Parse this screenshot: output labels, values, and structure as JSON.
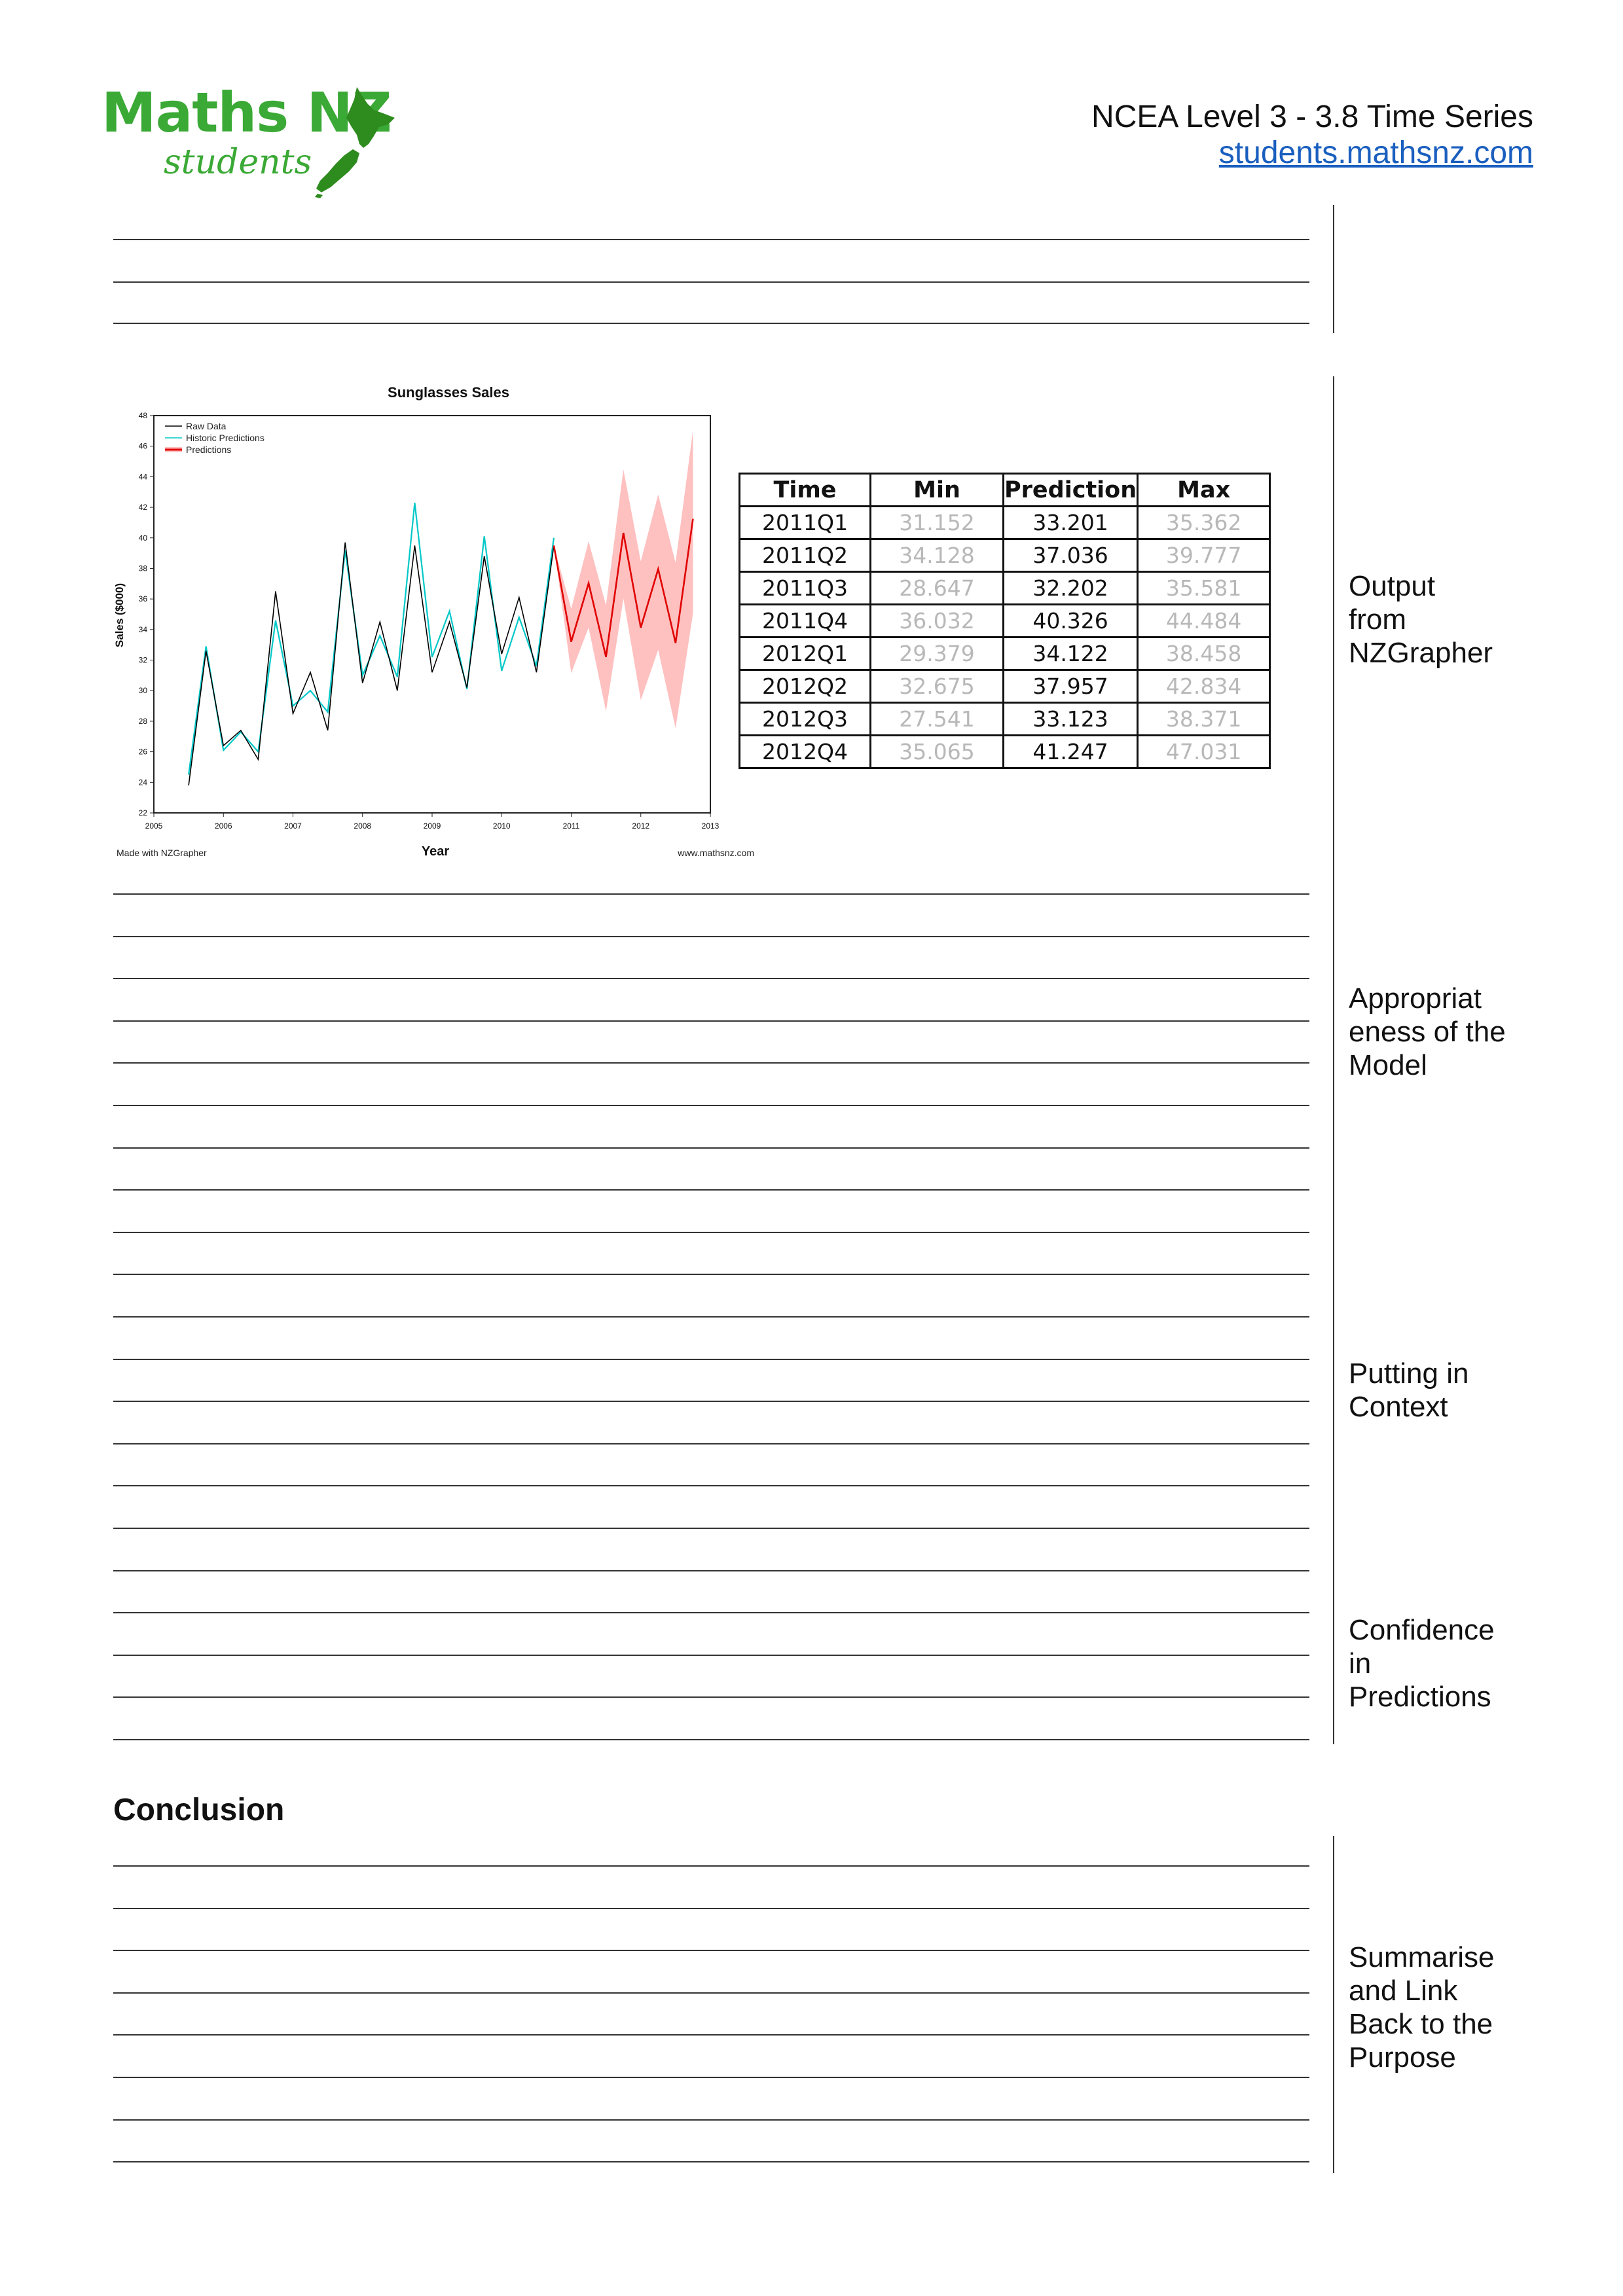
{
  "header": {
    "logo_main": "Maths NZ",
    "logo_sub": "students",
    "title": "NCEA Level 3 - 3.8 Time Series",
    "link": "students.mathsnz.com"
  },
  "side_notes": {
    "output": "Output\nfrom\nNZGrapher",
    "appropriateness": "Appropriat\neness of the\nModel",
    "context": "Putting in\nContext",
    "confidence": "Confidence\nin\nPredictions",
    "summarise": "Summarise\nand Link\nBack to the\nPurpose"
  },
  "conclusion_heading": "Conclusion",
  "table": {
    "headers": [
      "Time",
      "Min",
      "Prediction",
      "Max"
    ],
    "rows": [
      [
        "2011Q1",
        "31.152",
        "33.201",
        "35.362"
      ],
      [
        "2011Q2",
        "34.128",
        "37.036",
        "39.777"
      ],
      [
        "2011Q3",
        "28.647",
        "32.202",
        "35.581"
      ],
      [
        "2011Q4",
        "36.032",
        "40.326",
        "44.484"
      ],
      [
        "2012Q1",
        "29.379",
        "34.122",
        "38.458"
      ],
      [
        "2012Q2",
        "32.675",
        "37.957",
        "42.834"
      ],
      [
        "2012Q3",
        "27.541",
        "33.123",
        "38.371"
      ],
      [
        "2012Q4",
        "35.065",
        "41.247",
        "47.031"
      ]
    ]
  },
  "chart_data": {
    "type": "line",
    "title": "Sunglasses Sales",
    "xlabel": "Year",
    "ylabel": "Sales ($000)",
    "xlim": [
      2005,
      2013
    ],
    "ylim": [
      22,
      48
    ],
    "xticks": [
      "2005",
      "2006",
      "2007",
      "2008",
      "2009",
      "2010",
      "2011",
      "2012",
      "2013"
    ],
    "yticks": [
      "22",
      "24",
      "26",
      "28",
      "30",
      "32",
      "34",
      "36",
      "38",
      "40",
      "42",
      "44",
      "46",
      "48"
    ],
    "legend_position": "top-left",
    "footer_left": "Made with NZGrapher",
    "footer_right": "www.mathsnz.com",
    "colors": {
      "raw": "#000000",
      "historic": "#00c8c8",
      "prediction": "#e00000",
      "band": "#ffc0c0"
    },
    "series": [
      {
        "name": "Raw Data",
        "x": [
          2005.5,
          2005.75,
          2006.0,
          2006.25,
          2006.5,
          2006.75,
          2007.0,
          2007.25,
          2007.5,
          2007.75,
          2008.0,
          2008.25,
          2008.5,
          2008.75,
          2009.0,
          2009.25,
          2009.5,
          2009.75,
          2010.0,
          2010.25,
          2010.5,
          2010.75
        ],
        "y": [
          23.8,
          32.6,
          26.4,
          27.4,
          25.5,
          36.5,
          28.5,
          31.2,
          27.4,
          39.7,
          30.5,
          34.5,
          30.0,
          39.5,
          31.2,
          34.5,
          30.2,
          38.8,
          32.4,
          36.1,
          31.2,
          39.5
        ]
      },
      {
        "name": "Historic Predictions",
        "x": [
          2005.5,
          2005.75,
          2006.0,
          2006.25,
          2006.5,
          2006.75,
          2007.0,
          2007.25,
          2007.5,
          2007.75,
          2008.0,
          2008.25,
          2008.5,
          2008.75,
          2009.0,
          2009.25,
          2009.5,
          2009.75,
          2010.0,
          2010.25,
          2010.5,
          2010.75
        ],
        "y": [
          24.5,
          32.9,
          26.1,
          27.3,
          26.0,
          34.6,
          29.0,
          30.0,
          28.6,
          39.2,
          31.0,
          33.6,
          30.9,
          42.3,
          32.2,
          35.2,
          30.1,
          40.1,
          31.3,
          34.8,
          31.6,
          40.0
        ]
      },
      {
        "name": "Predictions",
        "x": [
          2010.75,
          2011.0,
          2011.25,
          2011.5,
          2011.75,
          2012.0,
          2012.25,
          2012.5,
          2012.75
        ],
        "y": [
          39.5,
          33.201,
          37.036,
          32.202,
          40.326,
          34.122,
          37.957,
          33.123,
          41.247
        ],
        "min": [
          39.5,
          31.152,
          34.128,
          28.647,
          36.032,
          29.379,
          32.675,
          27.541,
          35.065
        ],
        "max": [
          39.5,
          35.362,
          39.777,
          35.581,
          44.484,
          38.458,
          42.834,
          38.371,
          47.031
        ]
      }
    ]
  }
}
